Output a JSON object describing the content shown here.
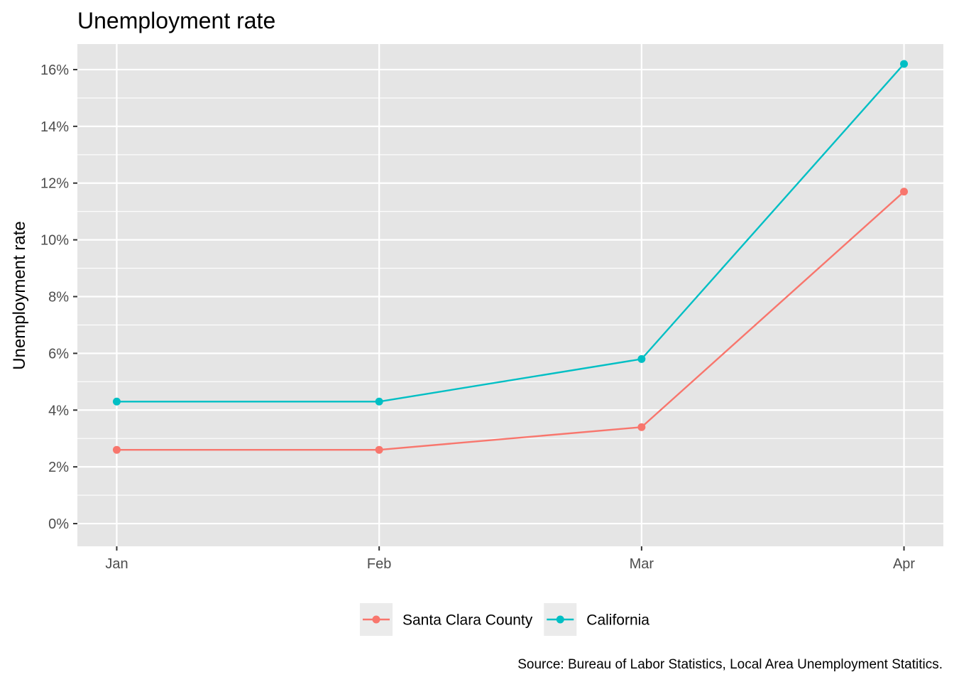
{
  "chart_data": {
    "type": "line",
    "title": "Unemployment rate",
    "xlabel": "",
    "ylabel": "Unemployment rate",
    "caption": "Source: Bureau of Labor Statistics, Local Area Unemployment Statitics.",
    "categories": [
      "Jan",
      "Feb",
      "Mar",
      "Apr"
    ],
    "x_values": [
      1,
      2,
      3,
      4
    ],
    "xlim": [
      0.85,
      4.15
    ],
    "ylim": [
      -0.8,
      16.9
    ],
    "y_ticks": [
      0,
      2,
      4,
      6,
      8,
      10,
      12,
      14,
      16
    ],
    "y_tick_labels": [
      "0%",
      "2%",
      "4%",
      "6%",
      "8%",
      "10%",
      "12%",
      "14%",
      "16%"
    ],
    "grid": true,
    "legend_position": "bottom",
    "series": [
      {
        "name": "Santa Clara County",
        "color": "#F8766D",
        "values": [
          2.6,
          2.6,
          3.4,
          11.7
        ]
      },
      {
        "name": "California",
        "color": "#00BFC4",
        "values": [
          4.3,
          4.3,
          5.8,
          16.2
        ]
      }
    ],
    "panel_background": "#E5E5E5",
    "grid_color": "#FFFFFF"
  }
}
